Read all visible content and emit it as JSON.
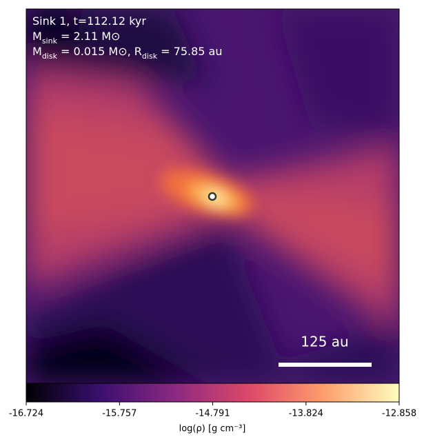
{
  "chart_data": {
    "type": "image",
    "annotations": [
      [
        "Sink 1, t=112.12 kyr"
      ],
      [
        "M",
        "sink",
        " = 2.11 M⊙"
      ],
      [
        "M",
        "disk",
        " = 0.015 M⊙, R",
        "disk",
        " = 75.85 au"
      ]
    ],
    "scale_bar_label": "125 au",
    "colorbar": {
      "label": "log(ρ) [g cm⁻³]",
      "clim": [
        -16.724,
        -12.858
      ],
      "ticks": [
        -16.724,
        -15.757,
        -14.791,
        -13.824,
        -12.858
      ]
    }
  }
}
